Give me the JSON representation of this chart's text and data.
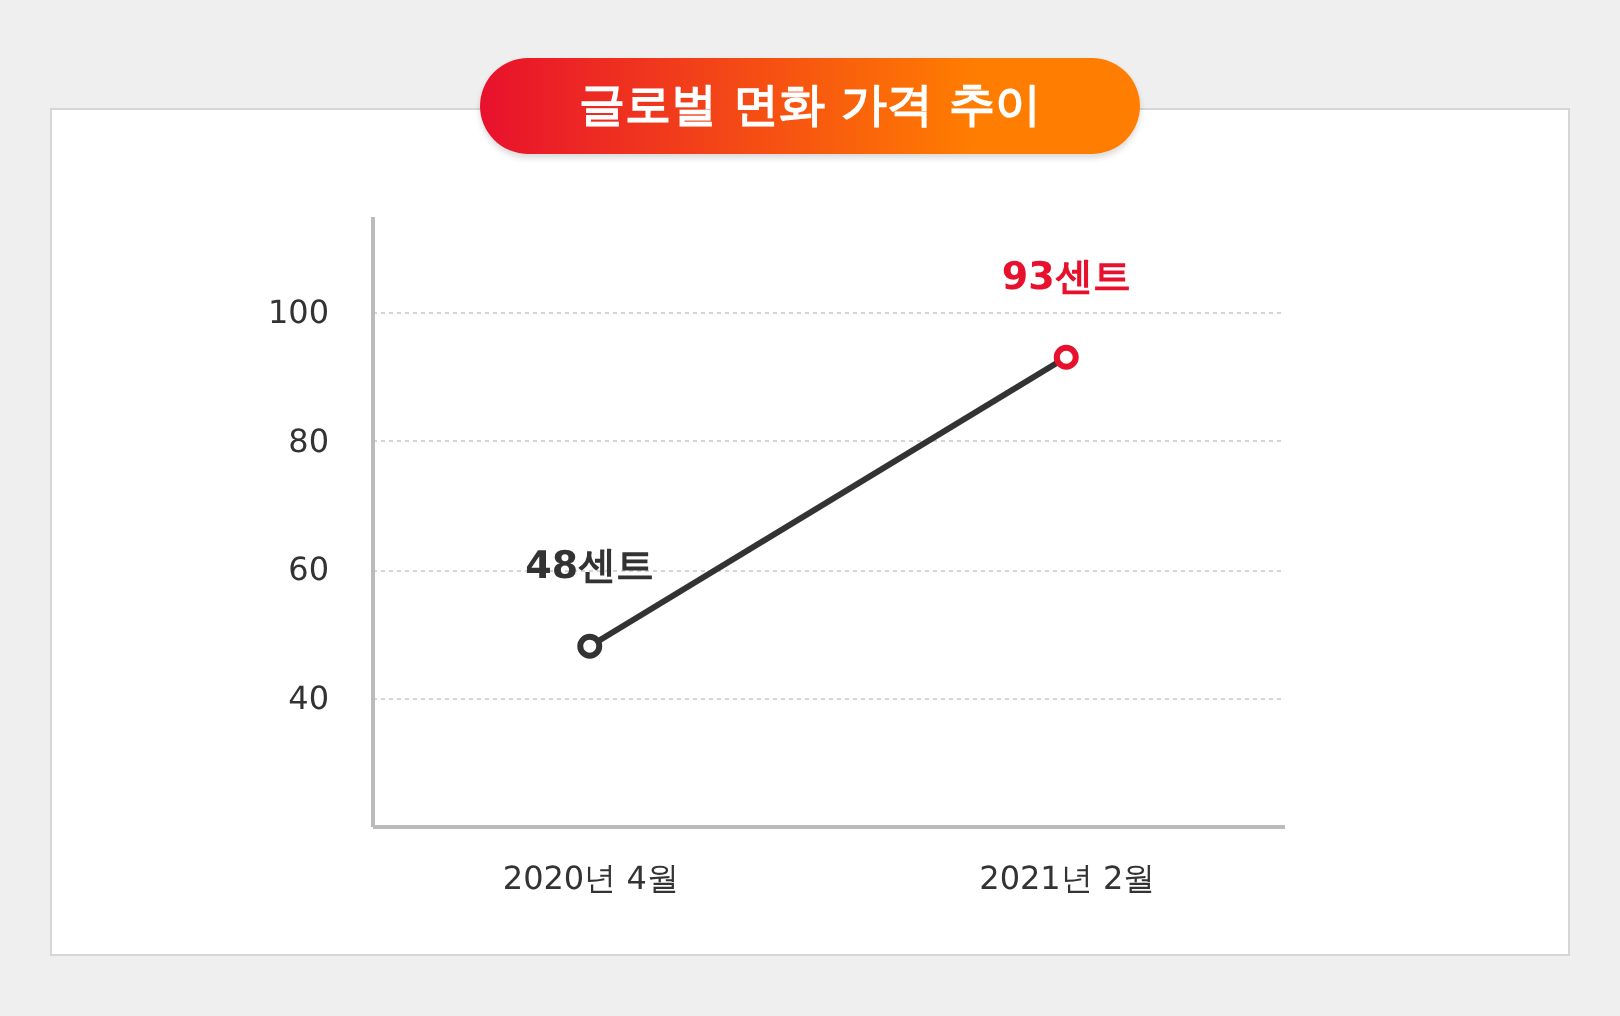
{
  "chart_data": {
    "type": "line",
    "title": "글로벌 면화 가격 추이",
    "categories": [
      "2020년 4월",
      "2021년 2월"
    ],
    "series": [
      {
        "color": "#333333",
        "values": [
          48,
          93
        ],
        "colors": [
          "#333333",
          "#e8112d"
        ],
        "value_labels": [
          "48센트",
          "93센트"
        ]
      }
    ],
    "ylim": [
      20,
      115
    ],
    "yticks": [
      40,
      60,
      80,
      100
    ],
    "grid": "y",
    "marker": "circle",
    "line_style": "solid"
  }
}
